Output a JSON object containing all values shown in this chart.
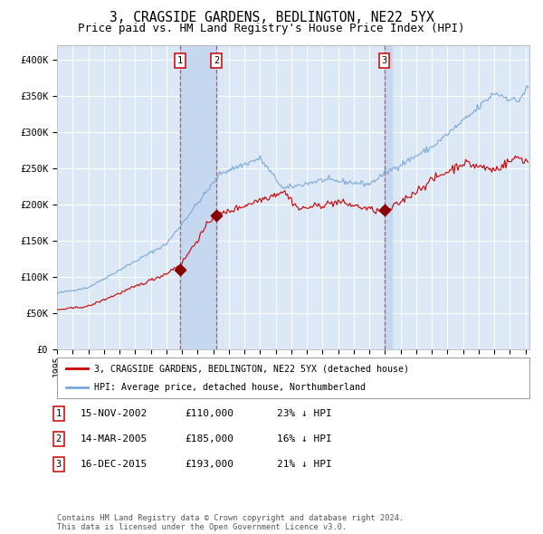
{
  "title": "3, CRAGSIDE GARDENS, BEDLINGTON, NE22 5YX",
  "subtitle": "Price paid vs. HM Land Registry's House Price Index (HPI)",
  "title_fontsize": 10.5,
  "subtitle_fontsize": 9,
  "red_line_color": "#cc0000",
  "blue_line_color": "#7aa8d8",
  "background_color": "#ffffff",
  "plot_bg_color": "#dce8f5",
  "grid_color": "#ffffff",
  "sale_dates": [
    "2002-11-15",
    "2005-03-14",
    "2015-12-16"
  ],
  "sale_prices": [
    110000,
    185000,
    193000
  ],
  "sale_labels": [
    "1",
    "2",
    "3"
  ],
  "legend_labels": [
    "3, CRAGSIDE GARDENS, BEDLINGTON, NE22 5YX (detached house)",
    "HPI: Average price, detached house, Northumberland"
  ],
  "table_rows": [
    [
      "1",
      "15-NOV-2002",
      "£110,000",
      "23% ↓ HPI"
    ],
    [
      "2",
      "14-MAR-2005",
      "£185,000",
      "16% ↓ HPI"
    ],
    [
      "3",
      "16-DEC-2015",
      "£193,000",
      "21% ↓ HPI"
    ]
  ],
  "footer": "Contains HM Land Registry data © Crown copyright and database right 2024.\nThis data is licensed under the Open Government Licence v3.0.",
  "ylim": [
    0,
    420000
  ],
  "yticks": [
    0,
    50000,
    100000,
    150000,
    200000,
    250000,
    300000,
    350000,
    400000
  ],
  "ytick_labels": [
    "£0",
    "£50K",
    "£100K",
    "£150K",
    "£200K",
    "£250K",
    "£300K",
    "£350K",
    "£400K"
  ],
  "shade_color": "#c5d8f0",
  "vline_color": "#ee3333",
  "marker_color": "#880000"
}
